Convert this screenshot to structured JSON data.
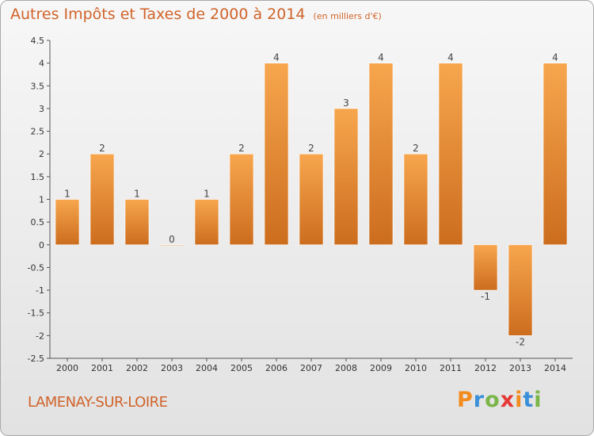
{
  "title": "Autres Impôts et Taxes de 2000 à 2014",
  "unit": "(en milliers d'€)",
  "commune": "LAMENAY-SUR-LOIRE",
  "logo": {
    "text": "Proxiti",
    "letter_colors": [
      "#f28c1e",
      "#3a8fd8",
      "#7ab648",
      "#e53935",
      "#f28c1e",
      "#3a8fd8",
      "#7ab648"
    ]
  },
  "colors": {
    "bar_light": "#f7a64e",
    "bar_dark": "#d0701f",
    "title": "#d0632a"
  },
  "chart_data": {
    "type": "bar",
    "categories": [
      "2000",
      "2001",
      "2002",
      "2003",
      "2004",
      "2005",
      "2006",
      "2007",
      "2008",
      "2009",
      "2010",
      "2011",
      "2012",
      "2013",
      "2014"
    ],
    "values": [
      1,
      2,
      1,
      0,
      1,
      2,
      4,
      2,
      3,
      4,
      2,
      4,
      -1,
      -2,
      4
    ],
    "ylim": [
      -2.5,
      4.5
    ],
    "yticks": [
      "-2.5",
      "-2",
      "-1.5",
      "-1",
      "-0.5",
      "0",
      "0.5",
      "1",
      "1.5",
      "2",
      "2.5",
      "3",
      "3.5",
      "4",
      "4.5"
    ],
    "grid": false,
    "legend": "none"
  }
}
